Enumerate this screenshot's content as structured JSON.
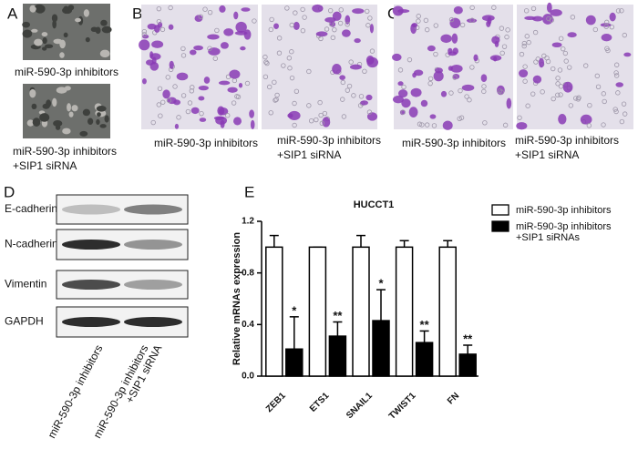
{
  "panel_labels": [
    "A",
    "B",
    "C",
    "D",
    "E"
  ],
  "captions": {
    "a": [
      [
        "miR-590-3p inhibitors"
      ],
      [
        "miR-590-3p inhibitors",
        "+SIP1 siRNA"
      ]
    ],
    "b": [
      [
        "miR-590-3p inhibitors"
      ],
      [
        "miR-590-3p inhibitors",
        "+SIP1 siRNA"
      ]
    ],
    "c": [
      [
        "miR-590-3p inhibitors"
      ],
      [
        "miR-590-3p inhibitors",
        "+SIP1 siRNA"
      ]
    ]
  },
  "blot": {
    "proteins": [
      "E-cadherin",
      "N-cadherin",
      "Vimentin",
      "GAPDH"
    ],
    "lanes": [
      [
        "miR-590-3p inhibitors"
      ],
      [
        "miR-590-3p inhibitors",
        "+SIP1 siRNA"
      ]
    ]
  },
  "chart_data": {
    "type": "bar",
    "title": "HUCCT1",
    "y_label": "Relative mRNAs expression",
    "categories": [
      "ZEB1",
      "ETS1",
      "SNAIL1",
      "TWIST1",
      "FN"
    ],
    "series": [
      {
        "name": [
          "miR-590-3p inhibitors"
        ],
        "color": "#ffffff",
        "values": [
          1,
          1,
          1,
          1,
          1
        ],
        "errors": [
          0.09,
          0,
          0.09,
          0.05,
          0.05
        ]
      },
      {
        "name": [
          "miR-590-3p inhibitors",
          "+SIP1 siRNAs"
        ],
        "color": "#000000",
        "values": [
          0.21,
          0.31,
          0.43,
          0.26,
          0.17
        ],
        "errors": [
          0.25,
          0.11,
          0.24,
          0.09,
          0.07
        ]
      }
    ],
    "annotations": [
      "*",
      "**",
      "*",
      "**",
      "**"
    ],
    "ylim": [
      0,
      1.2
    ],
    "yticks": [
      {
        "value": 0,
        "label": "0.0"
      },
      {
        "value": 0.4,
        "label": "0.4"
      },
      {
        "value": 0.8,
        "label": "0.8"
      },
      {
        "value": 1.2,
        "label": "1.2"
      }
    ]
  }
}
